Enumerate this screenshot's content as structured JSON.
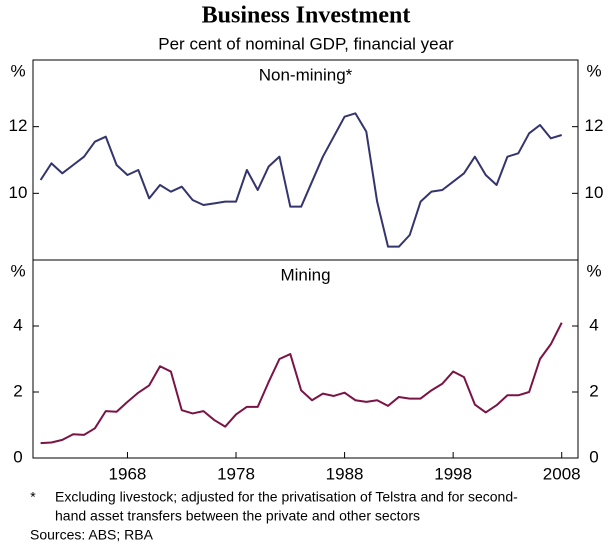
{
  "title": "Business Investment",
  "subtitle": "Per cent of nominal GDP, financial year",
  "note_marker": "*",
  "notes": [
    "Excluding livestock; adjusted for the privatisation of Telstra and for second-",
    "hand asset transfers between the private and other sectors"
  ],
  "sources": "Sources: ABS; RBA",
  "chart_data": [
    {
      "type": "line",
      "title": "Non-mining*",
      "unit": "%",
      "x": [
        1960,
        1961,
        1962,
        1963,
        1964,
        1965,
        1966,
        1967,
        1968,
        1969,
        1970,
        1971,
        1972,
        1973,
        1974,
        1975,
        1976,
        1977,
        1978,
        1979,
        1980,
        1981,
        1982,
        1983,
        1984,
        1985,
        1986,
        1987,
        1988,
        1989,
        1990,
        1991,
        1992,
        1993,
        1994,
        1995,
        1996,
        1997,
        1998,
        1999,
        2000,
        2001,
        2002,
        2003,
        2004,
        2005,
        2006,
        2007,
        2008
      ],
      "series": [
        {
          "color": "#34346e",
          "values": [
            10.4,
            10.9,
            10.6,
            10.85,
            11.1,
            11.55,
            11.7,
            10.85,
            10.55,
            10.7,
            9.85,
            10.25,
            10.05,
            10.2,
            9.8,
            9.65,
            9.7,
            9.75,
            9.75,
            10.7,
            10.1,
            10.8,
            11.1,
            9.6,
            9.6,
            10.35,
            11.1,
            11.7,
            12.3,
            12.4,
            11.85,
            9.75,
            8.4,
            8.4,
            8.75,
            9.75,
            10.05,
            10.1,
            10.35,
            10.6,
            11.1,
            10.55,
            10.25,
            11.1,
            11.2,
            11.8,
            12.05,
            11.65,
            11.75
          ]
        }
      ],
      "xlim": [
        1959.3,
        2009.5
      ],
      "ylim": [
        8,
        14
      ],
      "yticks": [
        10,
        12
      ],
      "grid": false
    },
    {
      "type": "line",
      "title": "Mining",
      "unit": "%",
      "x": [
        1960,
        1961,
        1962,
        1963,
        1964,
        1965,
        1966,
        1967,
        1968,
        1969,
        1970,
        1971,
        1972,
        1973,
        1974,
        1975,
        1976,
        1977,
        1978,
        1979,
        1980,
        1981,
        1982,
        1983,
        1984,
        1985,
        1986,
        1987,
        1988,
        1989,
        1990,
        1991,
        1992,
        1993,
        1994,
        1995,
        1996,
        1997,
        1998,
        1999,
        2000,
        2001,
        2002,
        2003,
        2004,
        2005,
        2006,
        2007,
        2008
      ],
      "series": [
        {
          "color": "#7a1444",
          "values": [
            0.45,
            0.47,
            0.55,
            0.72,
            0.7,
            0.9,
            1.42,
            1.4,
            1.7,
            1.98,
            2.2,
            2.78,
            2.62,
            1.45,
            1.35,
            1.42,
            1.15,
            0.95,
            1.32,
            1.55,
            1.55,
            2.3,
            3.0,
            3.15,
            2.05,
            1.75,
            1.95,
            1.88,
            1.98,
            1.75,
            1.7,
            1.75,
            1.58,
            1.85,
            1.8,
            1.8,
            2.05,
            2.25,
            2.62,
            2.45,
            1.62,
            1.38,
            1.6,
            1.9,
            1.9,
            2.0,
            3.0,
            3.45,
            4.1
          ]
        }
      ],
      "xlim": [
        1959.3,
        2009.5
      ],
      "xticks": [
        1968,
        1978,
        1988,
        1998,
        2008
      ],
      "ylim": [
        0,
        6
      ],
      "yticks": [
        0,
        2,
        4
      ],
      "grid": false
    }
  ]
}
